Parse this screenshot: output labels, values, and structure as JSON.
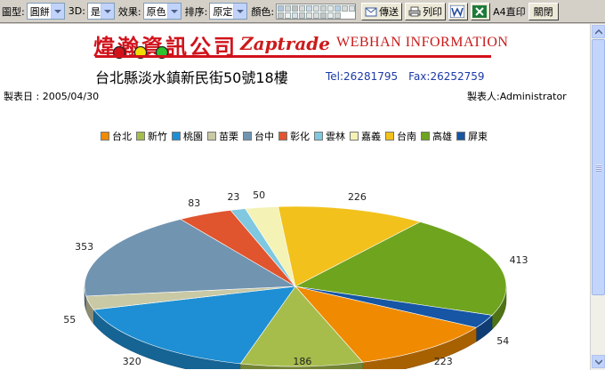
{
  "toolbar": {
    "chart_type_label": "圖型:",
    "chart_type_value": "圓餅",
    "three_d_label": "3D:",
    "three_d_value": "是",
    "effect_label": "效果:",
    "effect_value": "原色",
    "sort_label": "排序:",
    "sort_value": "原定",
    "color_label": "顏色:",
    "palette": [
      "#b0c4de",
      "#d3d3d3",
      "#c0c0c0",
      "#d8d8d8",
      "#c8d8e8",
      "#e0e0e0",
      "#d0d0d0",
      "#e8e8e8",
      "#b8d0e8",
      "#d8d8d8",
      "#e0e0e0",
      "#c8c8c8",
      "#f0f0f0",
      "#d8e0e8",
      "#cccccc",
      "#e4e4e4",
      "#dcdcdc",
      "#c4c4c4",
      "#ececec",
      "#d4d4d4"
    ],
    "send_button": "傳送",
    "print_button": "列印",
    "a4_text": "A4直印",
    "close_button": "關閉"
  },
  "letterhead": {
    "company_cn": "煒瀚資訊公司",
    "brand": "Zaptrade",
    "company_en": "WEBHAN INFORMATION",
    "address": "台北縣淡水鎮新民街50號18樓",
    "tel": "Tel:26281795",
    "fax": "Fax:26252759"
  },
  "report": {
    "date": "製表日 : 2005/04/30",
    "user": "製表人:Administrator"
  },
  "colors": {
    "brand_red": "#d1121b",
    "accent_blue": "#1c3aa8"
  },
  "chart_data": {
    "type": "pie",
    "three_d": true,
    "legend_position": "top",
    "categories": [
      "台北",
      "新竹",
      "桃園",
      "苗栗",
      "台中",
      "彰化",
      "雲林",
      "嘉義",
      "台南",
      "高雄",
      "屏東"
    ],
    "values": [
      223,
      186,
      320,
      55,
      353,
      83,
      23,
      50,
      226,
      413,
      54
    ],
    "colors": [
      "#f08a00",
      "#a6bd4c",
      "#1e8fd4",
      "#c9c9a5",
      "#7194b1",
      "#e0542e",
      "#7fc8e0",
      "#f4f2b4",
      "#f2c11c",
      "#6fa41e",
      "#1656a4"
    ]
  }
}
